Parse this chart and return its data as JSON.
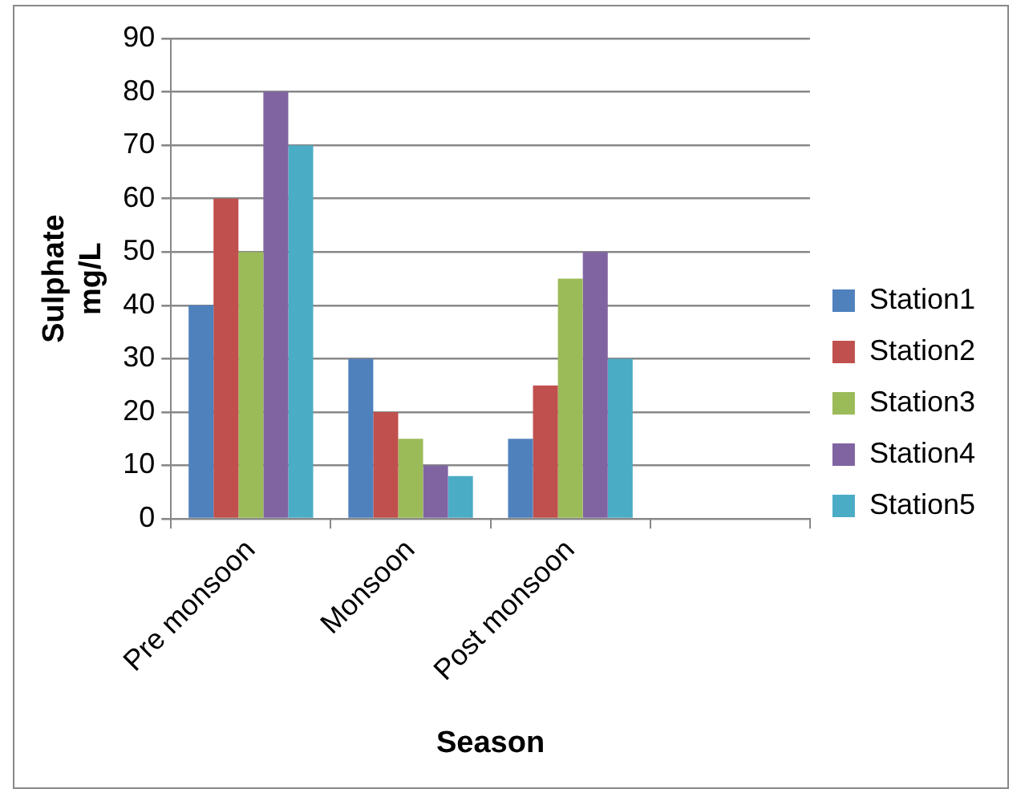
{
  "chart_data": {
    "type": "bar",
    "xlabel": "Season",
    "ylabel": "Sulphate mg/L",
    "categories": [
      "Pre monsoon",
      "Monsoon",
      "Post monsoon",
      null
    ],
    "series": [
      {
        "name": "Station1",
        "color": "#4f81bd",
        "values": [
          40,
          30,
          15,
          null
        ]
      },
      {
        "name": "Station2",
        "color": "#c0504d",
        "values": [
          60,
          20,
          25,
          null
        ]
      },
      {
        "name": "Station3",
        "color": "#9bbb59",
        "values": [
          50,
          15,
          45,
          null
        ]
      },
      {
        "name": "Station4",
        "color": "#8064a2",
        "values": [
          80,
          10,
          50,
          null
        ]
      },
      {
        "name": "Station5",
        "color": "#4bacc6",
        "values": [
          70,
          8,
          30,
          null
        ]
      }
    ],
    "ylim": [
      0,
      90
    ],
    "yticks": [
      0,
      10,
      20,
      30,
      40,
      50,
      60,
      70,
      80,
      90
    ],
    "grid": "y",
    "legend": "right"
  }
}
